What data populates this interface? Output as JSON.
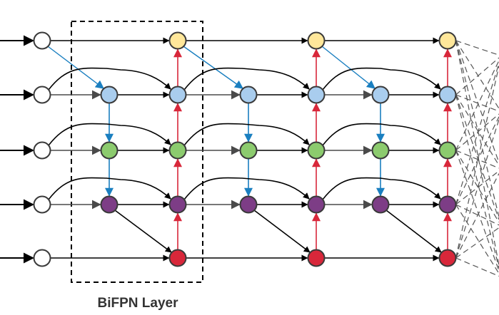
{
  "diagram": {
    "title": "BiFPN Layer",
    "colors": {
      "input": "#ffffff",
      "p7": "#ffe79a",
      "p6": "#a9cdee",
      "p5": "#8ccb6e",
      "p4": "#7d3d86",
      "p3": "#d8273a",
      "node_stroke": "#3a3a3a",
      "edge_black": "#000000",
      "edge_gray": "#4a4a4a",
      "edge_blue": "#1a7fc0",
      "edge_red": "#d8273a",
      "dashed_edge": "#555555",
      "layer_box": "#000000"
    }
  }
}
